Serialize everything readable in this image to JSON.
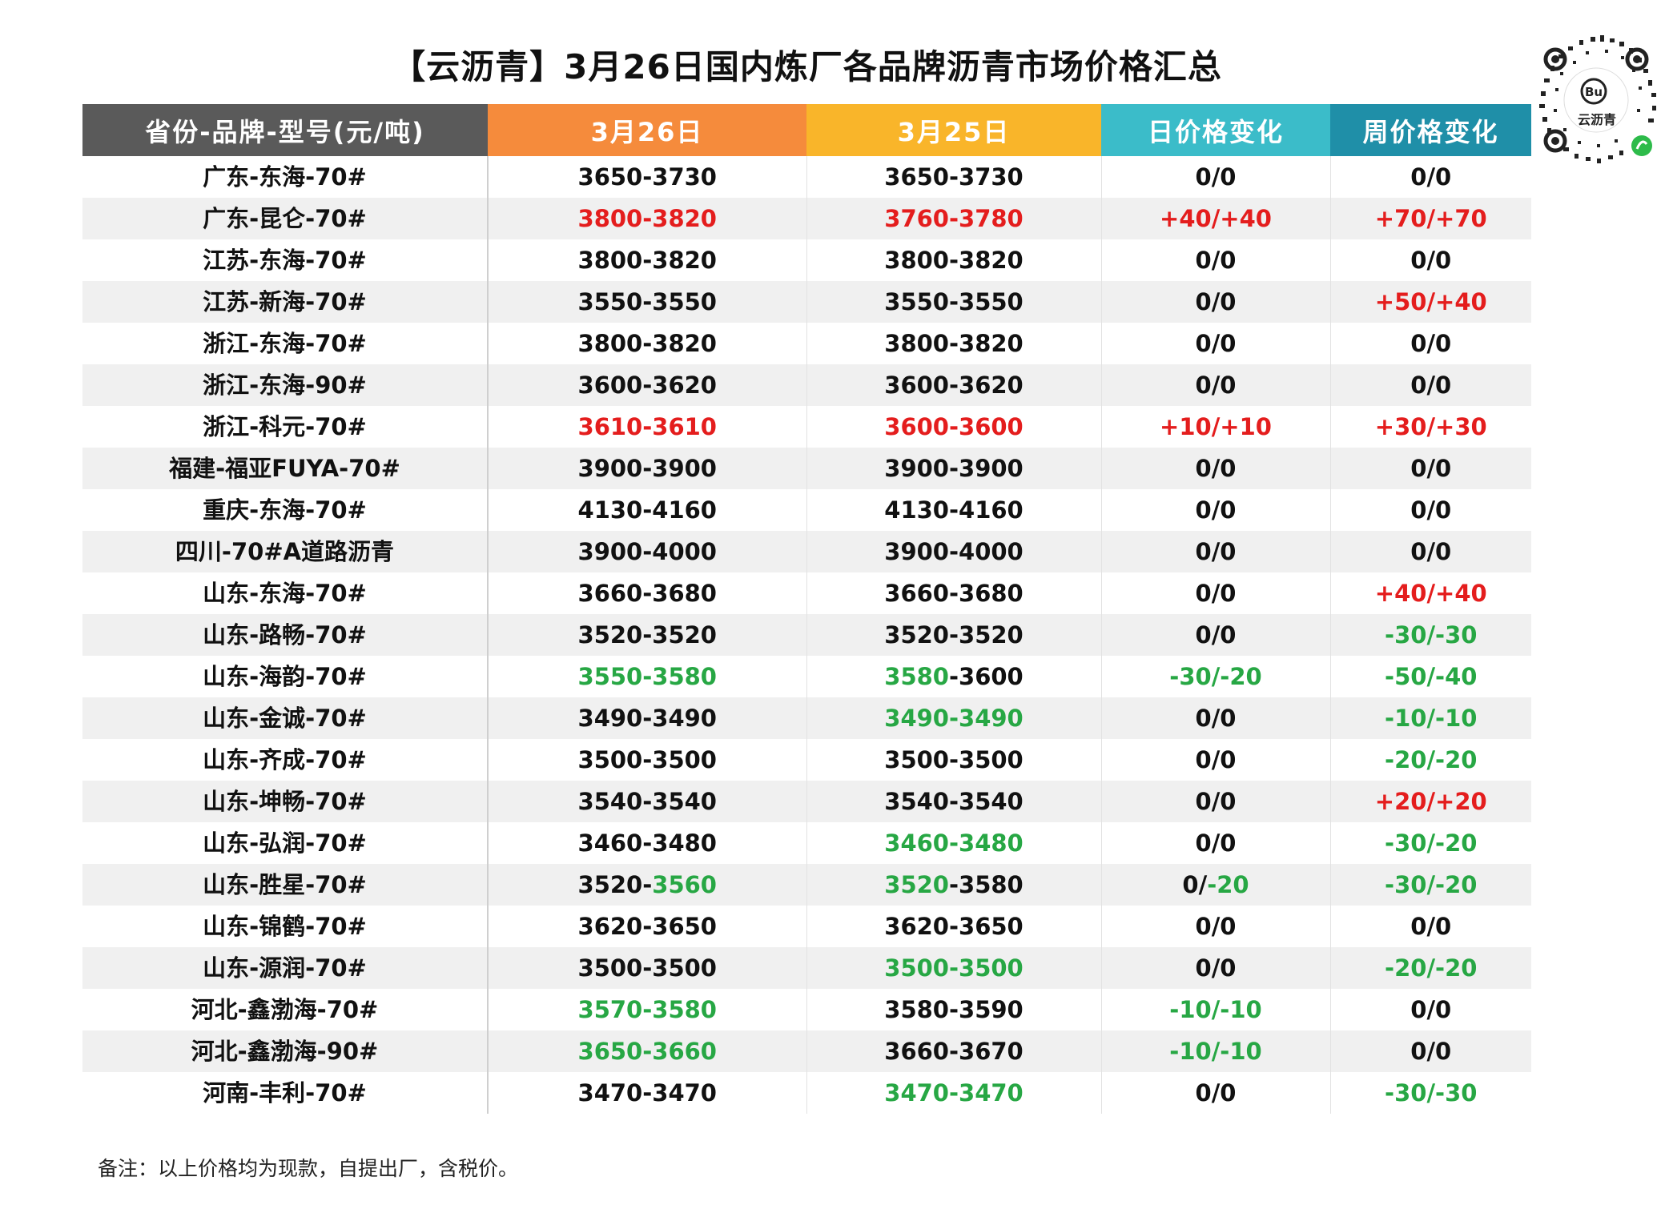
{
  "title": "【云沥青】3月26日国内炼厂各品牌沥青市场价格汇总",
  "qr": {
    "logo_text": "云沥青",
    "icon": "qr-code-icon"
  },
  "table": {
    "headers": [
      "省份-品牌-型号(元/吨)",
      "3月26日",
      "3月25日",
      "日价格变化",
      "周价格变化"
    ],
    "rows": [
      {
        "name": "广东-东海-70#",
        "d26": [
          [
            "3650-3730",
            ""
          ]
        ],
        "d25": [
          [
            "3650-3730",
            ""
          ]
        ],
        "day": [
          [
            "0/0",
            ""
          ]
        ],
        "week": [
          [
            "0/0",
            ""
          ]
        ]
      },
      {
        "name": "广东-昆仑-70#",
        "d26": [
          [
            "3800-3820",
            "red"
          ]
        ],
        "d25": [
          [
            "3760-3780",
            "red"
          ]
        ],
        "day": [
          [
            "+40/+40",
            "red"
          ]
        ],
        "week": [
          [
            "+70/+70",
            "red"
          ]
        ]
      },
      {
        "name": "江苏-东海-70#",
        "d26": [
          [
            "3800-3820",
            ""
          ]
        ],
        "d25": [
          [
            "3800-3820",
            ""
          ]
        ],
        "day": [
          [
            "0/0",
            ""
          ]
        ],
        "week": [
          [
            "0/0",
            ""
          ]
        ]
      },
      {
        "name": "江苏-新海-70#",
        "d26": [
          [
            "3550-3550",
            ""
          ]
        ],
        "d25": [
          [
            "3550-3550",
            ""
          ]
        ],
        "day": [
          [
            "0/0",
            ""
          ]
        ],
        "week": [
          [
            "+50/+40",
            "red"
          ]
        ]
      },
      {
        "name": "浙江-东海-70#",
        "d26": [
          [
            "3800-3820",
            ""
          ]
        ],
        "d25": [
          [
            "3800-3820",
            ""
          ]
        ],
        "day": [
          [
            "0/0",
            ""
          ]
        ],
        "week": [
          [
            "0/0",
            ""
          ]
        ]
      },
      {
        "name": "浙江-东海-90#",
        "d26": [
          [
            "3600-3620",
            ""
          ]
        ],
        "d25": [
          [
            "3600-3620",
            ""
          ]
        ],
        "day": [
          [
            "0/0",
            ""
          ]
        ],
        "week": [
          [
            "0/0",
            ""
          ]
        ]
      },
      {
        "name": "浙江-科元-70#",
        "d26": [
          [
            "3610-3610",
            "red"
          ]
        ],
        "d25": [
          [
            "3600-3600",
            "red"
          ]
        ],
        "day": [
          [
            "+10/+10",
            "red"
          ]
        ],
        "week": [
          [
            "+30/+30",
            "red"
          ]
        ]
      },
      {
        "name": "福建-福亚FUYA-70#",
        "d26": [
          [
            "3900-3900",
            ""
          ]
        ],
        "d25": [
          [
            "3900-3900",
            ""
          ]
        ],
        "day": [
          [
            "0/0",
            ""
          ]
        ],
        "week": [
          [
            "0/0",
            ""
          ]
        ]
      },
      {
        "name": "重庆-东海-70#",
        "d26": [
          [
            "4130-4160",
            ""
          ]
        ],
        "d25": [
          [
            "4130-4160",
            ""
          ]
        ],
        "day": [
          [
            "0/0",
            ""
          ]
        ],
        "week": [
          [
            "0/0",
            ""
          ]
        ]
      },
      {
        "name": "四川-70#A道路沥青",
        "d26": [
          [
            "3900-4000",
            ""
          ]
        ],
        "d25": [
          [
            "3900-4000",
            ""
          ]
        ],
        "day": [
          [
            "0/0",
            ""
          ]
        ],
        "week": [
          [
            "0/0",
            ""
          ]
        ]
      },
      {
        "name": "山东-东海-70#",
        "d26": [
          [
            "3660-3680",
            ""
          ]
        ],
        "d25": [
          [
            "3660-3680",
            ""
          ]
        ],
        "day": [
          [
            "0/0",
            ""
          ]
        ],
        "week": [
          [
            "+40/+40",
            "red"
          ]
        ]
      },
      {
        "name": "山东-路畅-70#",
        "d26": [
          [
            "3520-3520",
            ""
          ]
        ],
        "d25": [
          [
            "3520-3520",
            ""
          ]
        ],
        "day": [
          [
            "0/0",
            ""
          ]
        ],
        "week": [
          [
            "-30/-30",
            "green"
          ]
        ]
      },
      {
        "name": "山东-海韵-70#",
        "d26": [
          [
            "3550-3580",
            "green"
          ]
        ],
        "d25": [
          [
            "3580",
            "green"
          ],
          [
            "-3600",
            ""
          ]
        ],
        "day": [
          [
            "-30/-20",
            "green"
          ]
        ],
        "week": [
          [
            "-50/-40",
            "green"
          ]
        ]
      },
      {
        "name": "山东-金诚-70#",
        "d26": [
          [
            "3490-3490",
            ""
          ]
        ],
        "d25": [
          [
            "3490-3490",
            "green"
          ]
        ],
        "day": [
          [
            "0/0",
            ""
          ]
        ],
        "week": [
          [
            "-10/-10",
            "green"
          ]
        ]
      },
      {
        "name": "山东-齐成-70#",
        "d26": [
          [
            "3500-3500",
            ""
          ]
        ],
        "d25": [
          [
            "3500-3500",
            ""
          ]
        ],
        "day": [
          [
            "0/0",
            ""
          ]
        ],
        "week": [
          [
            "-20/-20",
            "green"
          ]
        ]
      },
      {
        "name": "山东-坤畅-70#",
        "d26": [
          [
            "3540-3540",
            ""
          ]
        ],
        "d25": [
          [
            "3540-3540",
            ""
          ]
        ],
        "day": [
          [
            "0/0",
            ""
          ]
        ],
        "week": [
          [
            "+20/+20",
            "red"
          ]
        ]
      },
      {
        "name": "山东-弘润-70#",
        "d26": [
          [
            "3460-3480",
            ""
          ]
        ],
        "d25": [
          [
            "3460-3480",
            "green"
          ]
        ],
        "day": [
          [
            "0/0",
            ""
          ]
        ],
        "week": [
          [
            "-30/-20",
            "green"
          ]
        ]
      },
      {
        "name": "山东-胜星-70#",
        "d26": [
          [
            "3520-",
            ""
          ],
          [
            "3560",
            "green"
          ]
        ],
        "d25": [
          [
            "3520",
            "green"
          ],
          [
            "-3580",
            ""
          ]
        ],
        "day": [
          [
            "0/",
            ""
          ],
          [
            "-20",
            "green"
          ]
        ],
        "week": [
          [
            "-30/-20",
            "green"
          ]
        ]
      },
      {
        "name": "山东-锦鹤-70#",
        "d26": [
          [
            "3620-3650",
            ""
          ]
        ],
        "d25": [
          [
            "3620-3650",
            ""
          ]
        ],
        "day": [
          [
            "0/0",
            ""
          ]
        ],
        "week": [
          [
            "0/0",
            ""
          ]
        ]
      },
      {
        "name": "山东-源润-70#",
        "d26": [
          [
            "3500-3500",
            ""
          ]
        ],
        "d25": [
          [
            "3500-3500",
            "green"
          ]
        ],
        "day": [
          [
            "0/0",
            ""
          ]
        ],
        "week": [
          [
            "-20/-20",
            "green"
          ]
        ]
      },
      {
        "name": "河北-鑫渤海-70#",
        "d26": [
          [
            "3570-3580",
            "green"
          ]
        ],
        "d25": [
          [
            "3580-3590",
            ""
          ]
        ],
        "day": [
          [
            "-10/-10",
            "green"
          ]
        ],
        "week": [
          [
            "0/0",
            ""
          ]
        ]
      },
      {
        "name": "河北-鑫渤海-90#",
        "d26": [
          [
            "3650-3660",
            "green"
          ]
        ],
        "d25": [
          [
            "3660-3670",
            ""
          ]
        ],
        "day": [
          [
            "-10/-10",
            "green"
          ]
        ],
        "week": [
          [
            "0/0",
            ""
          ]
        ]
      },
      {
        "name": "河南-丰利-70#",
        "d26": [
          [
            "3470-3470",
            ""
          ]
        ],
        "d25": [
          [
            "3470-3470",
            "green"
          ]
        ],
        "day": [
          [
            "0/0",
            ""
          ]
        ],
        "week": [
          [
            "-30/-30",
            "green"
          ]
        ]
      }
    ]
  },
  "note": "备注：以上价格均为现款，自提出厂，含税价。",
  "colors": {
    "rise": "#e41d1d",
    "fall": "#27a744"
  }
}
